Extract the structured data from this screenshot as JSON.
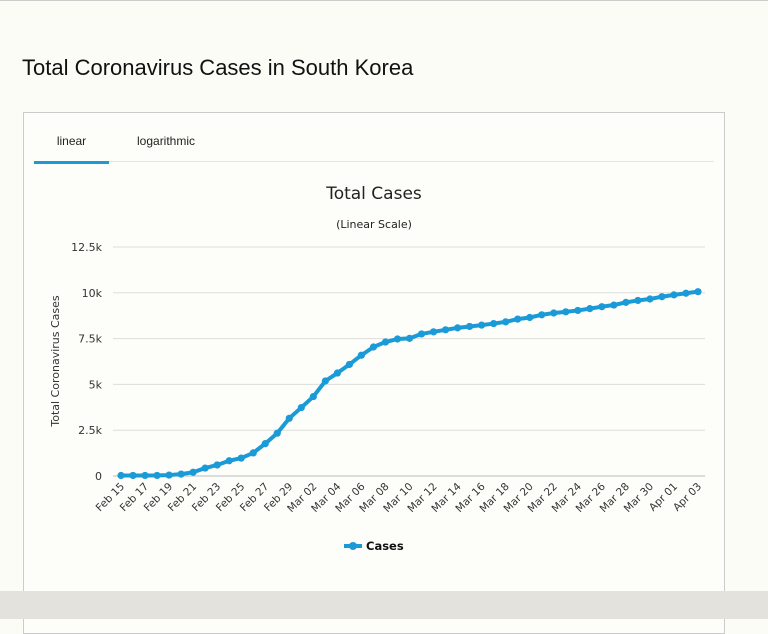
{
  "page_title": "Total Coronavirus Cases in South Korea",
  "tabs": [
    {
      "label": "linear",
      "active": true
    },
    {
      "label": "logarithmic",
      "active": false
    }
  ],
  "chart_data": {
    "type": "line",
    "title": "Total Cases",
    "subtitle": "(Linear Scale)",
    "ylabel": "Total Coronavirus Cases",
    "xlabel": "",
    "ylim": [
      0,
      12500
    ],
    "yticks": [
      "0",
      "2.5k",
      "5k",
      "7.5k",
      "10k",
      "12.5k"
    ],
    "grid": true,
    "legend_position": "bottom",
    "color": "#1a9bd7",
    "x": [
      "Feb 15",
      "Feb 16",
      "Feb 17",
      "Feb 18",
      "Feb 19",
      "Feb 20",
      "Feb 21",
      "Feb 22",
      "Feb 23",
      "Feb 24",
      "Feb 25",
      "Feb 26",
      "Feb 27",
      "Feb 28",
      "Feb 29",
      "Mar 01",
      "Mar 02",
      "Mar 03",
      "Mar 04",
      "Mar 05",
      "Mar 06",
      "Mar 07",
      "Mar 08",
      "Mar 09",
      "Mar 10",
      "Mar 11",
      "Mar 12",
      "Mar 13",
      "Mar 14",
      "Mar 15",
      "Mar 16",
      "Mar 17",
      "Mar 18",
      "Mar 19",
      "Mar 20",
      "Mar 21",
      "Mar 22",
      "Mar 23",
      "Mar 24",
      "Mar 25",
      "Mar 26",
      "Mar 27",
      "Mar 28",
      "Mar 29",
      "Mar 30",
      "Mar 31",
      "Apr 01",
      "Apr 02",
      "Apr 03"
    ],
    "series": [
      {
        "name": "Cases",
        "values": [
          28,
          29,
          30,
          31,
          51,
          104,
          204,
          433,
          602,
          833,
          977,
          1261,
          1766,
          2337,
          3150,
          3736,
          4335,
          5186,
          5621,
          6088,
          6593,
          7041,
          7313,
          7478,
          7513,
          7755,
          7869,
          7979,
          8086,
          8162,
          8236,
          8320,
          8413,
          8565,
          8652,
          8799,
          8897,
          8961,
          9037,
          9137,
          9241,
          9332,
          9478,
          9583,
          9661,
          9786,
          9887,
          9976,
          10062
        ]
      }
    ]
  }
}
